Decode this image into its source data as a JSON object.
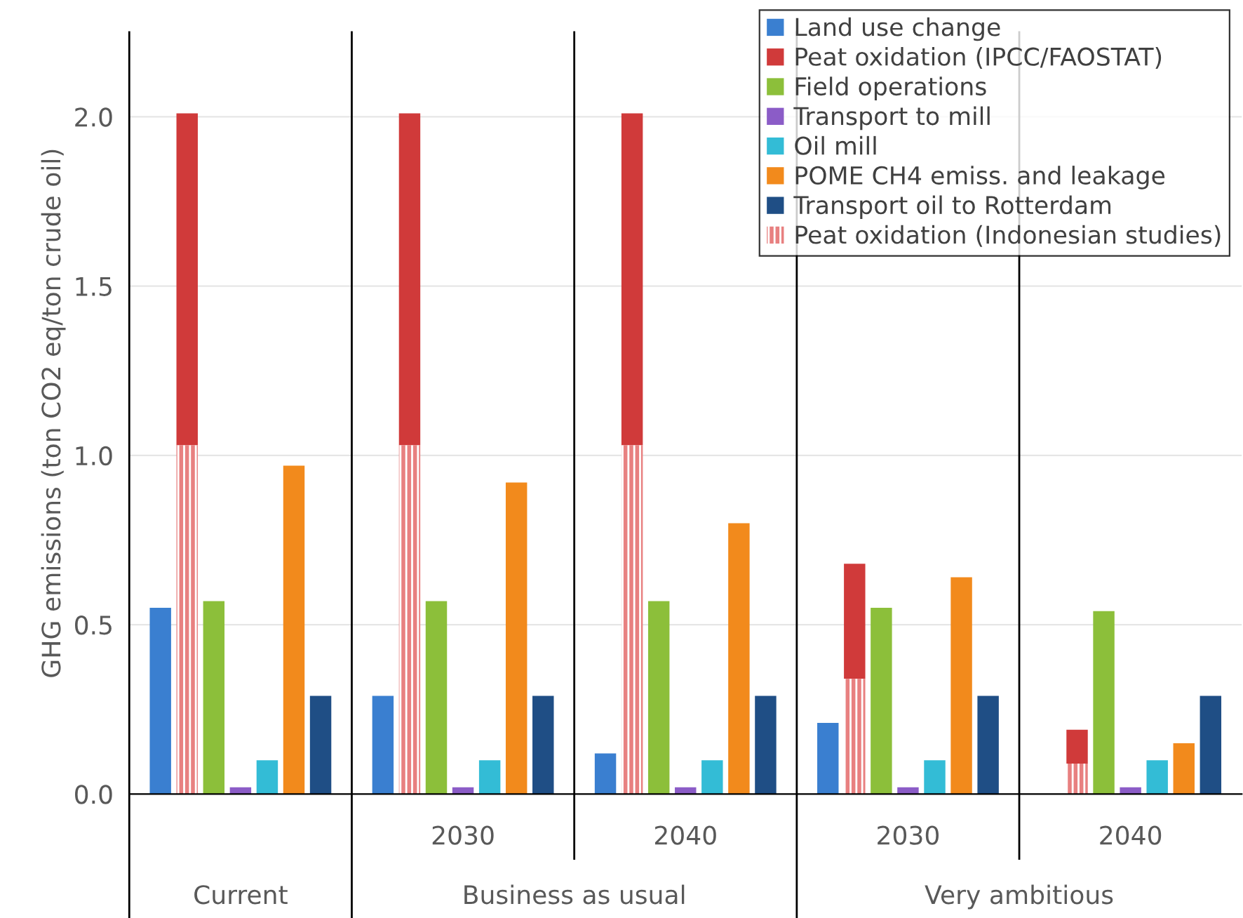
{
  "chart_data": {
    "type": "bar",
    "ylabel": "GHG emissions (ton CO2 eq/ton crude oil)",
    "categories": [
      null,
      "2030",
      "2040",
      "2030",
      "2040"
    ],
    "annotations": [
      "Current",
      "Business as usual",
      "Very ambitious"
    ],
    "series": [
      {
        "name": "Land use change",
        "color": "#3a7fd0",
        "values": [
          0.55,
          0.29,
          0.12,
          0.21,
          0
        ]
      },
      {
        "name": "Peat oxidation (IPCC/FAOSTAT)",
        "color": "#d03a3a",
        "values": [
          0.98,
          0.98,
          0.98,
          0.34,
          0.1
        ],
        "base": [
          1.03,
          1.03,
          1.03,
          0.34,
          0.09
        ]
      },
      {
        "name": "Field operations",
        "color": "#8cbf3a",
        "values": [
          0.57,
          0.57,
          0.57,
          0.55,
          0.54
        ]
      },
      {
        "name": "Transport to mill",
        "color": "#8b5cc7",
        "values": [
          0.02,
          0.02,
          0.02,
          0.02,
          0.02
        ]
      },
      {
        "name": "Oil mill",
        "color": "#33bcd6",
        "values": [
          0.1,
          0.1,
          0.1,
          0.1,
          0.1
        ]
      },
      {
        "name": "POME CH4 emiss. and leakage",
        "color": "#f28a1c",
        "values": [
          0.97,
          0.92,
          0.8,
          0.64,
          0.15
        ]
      },
      {
        "name": "Transport oil to Rotterdam",
        "color": "#1f4e85",
        "values": [
          0.29,
          0.29,
          0.29,
          0.29,
          0.29
        ]
      },
      {
        "name": "Peat oxidation (Indonesian studies)",
        "color": "#e88080",
        "values": [
          1.03,
          1.03,
          1.03,
          0.34,
          0.09
        ]
      }
    ],
    "ylim": [
      0,
      2.25
    ],
    "yticks": [
      {
        "value": 0,
        "label": "0.0"
      },
      {
        "value": 0.5,
        "label": "0.5"
      },
      {
        "value": 1,
        "label": "1.0"
      },
      {
        "value": 1.5,
        "label": "1.5"
      },
      {
        "value": 2,
        "label": "2.0"
      }
    ],
    "grid": "y",
    "legend": "top right"
  }
}
